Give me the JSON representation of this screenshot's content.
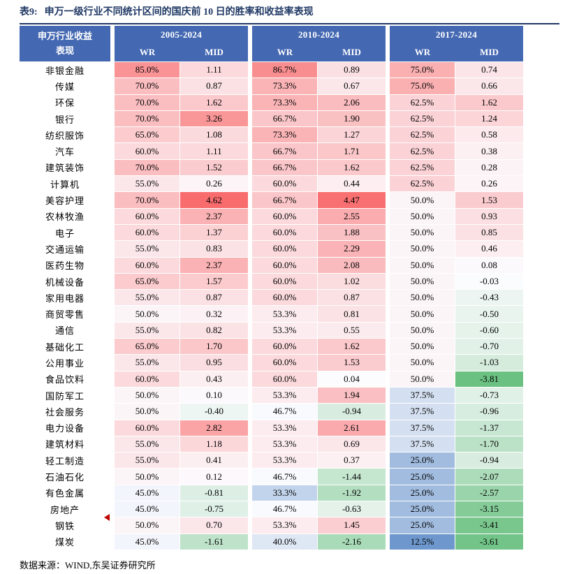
{
  "title": {
    "label": "表9:",
    "text": "申万一级行业不同统计区间的国庆前 10 日的胜率和收益率表现"
  },
  "footer": {
    "text": "数据来源：WIND,东吴证券研究所"
  },
  "colors": {
    "header_blue": "#4468b2",
    "title_navy": "#1f3864",
    "rule": "#1f3864",
    "heat_red": "#F8696B",
    "heat_white": "#FCFCFF",
    "heat_blue": "#5A8AC6",
    "heat_green": "#63BE7B",
    "marker_red": "#C00000"
  },
  "table": {
    "corner_lines": [
      "申万行业收益",
      "表现"
    ],
    "groups": [
      "2005-2024",
      "2010-2024",
      "2017-2024"
    ],
    "sub_headers": [
      "WR",
      "MID"
    ],
    "rows": [
      {
        "industry": "非银金融",
        "values": [
          85.0,
          1.11,
          86.7,
          0.89,
          75.0,
          0.74
        ]
      },
      {
        "industry": "传媒",
        "values": [
          70.0,
          0.87,
          73.3,
          0.67,
          75.0,
          0.66
        ]
      },
      {
        "industry": "环保",
        "values": [
          70.0,
          1.62,
          73.3,
          2.06,
          62.5,
          1.62
        ]
      },
      {
        "industry": "银行",
        "values": [
          70.0,
          3.26,
          66.7,
          1.9,
          62.5,
          1.24
        ]
      },
      {
        "industry": "纺织服饰",
        "values": [
          65.0,
          1.08,
          73.3,
          1.27,
          62.5,
          0.58
        ]
      },
      {
        "industry": "汽车",
        "values": [
          60.0,
          1.11,
          66.7,
          1.71,
          62.5,
          0.38
        ]
      },
      {
        "industry": "建筑装饰",
        "values": [
          70.0,
          1.52,
          66.7,
          1.62,
          62.5,
          0.28
        ]
      },
      {
        "industry": "计算机",
        "values": [
          55.0,
          0.26,
          60.0,
          0.44,
          62.5,
          0.26
        ]
      },
      {
        "industry": "美容护理",
        "values": [
          70.0,
          4.62,
          66.7,
          4.47,
          50.0,
          1.53
        ]
      },
      {
        "industry": "农林牧渔",
        "values": [
          60.0,
          2.37,
          60.0,
          2.55,
          50.0,
          0.93
        ]
      },
      {
        "industry": "电子",
        "values": [
          60.0,
          1.37,
          60.0,
          1.88,
          50.0,
          0.85
        ]
      },
      {
        "industry": "交通运输",
        "values": [
          55.0,
          0.83,
          60.0,
          2.29,
          50.0,
          0.46
        ]
      },
      {
        "industry": "医药生物",
        "values": [
          60.0,
          2.37,
          60.0,
          2.08,
          50.0,
          0.08
        ]
      },
      {
        "industry": "机械设备",
        "values": [
          65.0,
          1.57,
          60.0,
          1.02,
          50.0,
          -0.03
        ]
      },
      {
        "industry": "家用电器",
        "values": [
          55.0,
          0.87,
          60.0,
          0.87,
          50.0,
          -0.43
        ]
      },
      {
        "industry": "商贸零售",
        "values": [
          50.0,
          0.32,
          53.3,
          0.81,
          50.0,
          -0.5
        ]
      },
      {
        "industry": "通信",
        "values": [
          55.0,
          0.82,
          53.3,
          0.55,
          50.0,
          -0.6
        ]
      },
      {
        "industry": "基础化工",
        "values": [
          65.0,
          1.7,
          60.0,
          1.62,
          50.0,
          -0.7
        ]
      },
      {
        "industry": "公用事业",
        "values": [
          55.0,
          0.95,
          60.0,
          1.53,
          50.0,
          -1.03
        ]
      },
      {
        "industry": "食品饮料",
        "values": [
          60.0,
          0.43,
          60.0,
          0.04,
          50.0,
          -3.81
        ]
      },
      {
        "industry": "国防军工",
        "values": [
          50.0,
          0.1,
          53.3,
          1.94,
          37.5,
          -0.73
        ]
      },
      {
        "industry": "社会服务",
        "values": [
          50.0,
          -0.4,
          46.7,
          -0.94,
          37.5,
          -0.96
        ]
      },
      {
        "industry": "电力设备",
        "values": [
          60.0,
          2.82,
          53.3,
          2.61,
          37.5,
          -1.37
        ]
      },
      {
        "industry": "建筑材料",
        "values": [
          55.0,
          1.18,
          53.3,
          0.69,
          37.5,
          -1.7
        ]
      },
      {
        "industry": "轻工制造",
        "values": [
          55.0,
          0.41,
          53.3,
          0.37,
          25.0,
          -0.94
        ]
      },
      {
        "industry": "石油石化",
        "values": [
          50.0,
          0.12,
          46.7,
          -1.44,
          25.0,
          -2.07
        ]
      },
      {
        "industry": "有色金属",
        "values": [
          45.0,
          -0.81,
          33.3,
          -1.92,
          25.0,
          -2.57
        ]
      },
      {
        "industry": "房地产",
        "values": [
          45.0,
          -0.75,
          46.7,
          -0.63,
          25.0,
          -3.15
        ],
        "marker": true
      },
      {
        "industry": "钢铁",
        "values": [
          50.0,
          0.7,
          53.3,
          1.45,
          25.0,
          -3.41
        ]
      },
      {
        "industry": "煤炭",
        "values": [
          45.0,
          -1.61,
          40.0,
          -2.16,
          12.5,
          -3.61
        ]
      }
    ]
  }
}
